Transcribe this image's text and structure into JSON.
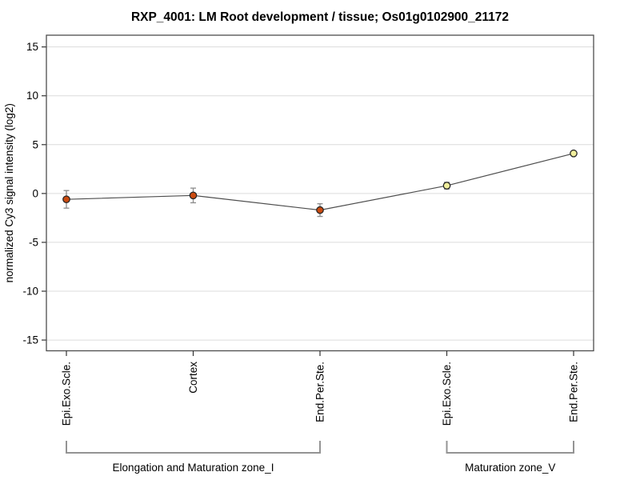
{
  "chart_data": {
    "type": "line",
    "title": "RXP_4001: LM Root development / tissue; Os01g0102900_21172",
    "ylabel": "normalized Cy3 signal intensity (log2)",
    "xlabel": "",
    "ylim": [
      -16.1,
      16.2
    ],
    "yticks": [
      15,
      10,
      5,
      0,
      -5,
      -10,
      -15
    ],
    "grid": true,
    "legend_position": "none",
    "categories": [
      "Epi.Exo.Scle.",
      "Cortex",
      "End.Per.Ste.",
      "Epi.Exo.Scle.",
      "End.Per.Ste."
    ],
    "series": [
      {
        "name": "normalized Cy3 signal intensity (log2)",
        "values": [
          -0.6,
          -0.2,
          -1.7,
          0.8,
          4.1
        ],
        "errors": [
          0.9,
          0.75,
          0.65,
          0.35,
          0.15
        ]
      }
    ],
    "groups": [
      {
        "label": "Elongation and Maturation zone_I",
        "start_index": 0,
        "end_index": 2,
        "marker_color": "#cb4b10"
      },
      {
        "label": "Maturation zone_V",
        "start_index": 3,
        "end_index": 4,
        "marker_color": "#f0ee9c"
      }
    ],
    "colors": {
      "line": "#4d4d4d",
      "error_bar": "#8c8c8c",
      "grid": "#dcdcdc",
      "box_border": "#4d4d4d",
      "marker_border": "#262626",
      "tick": "#333333",
      "bracket": "#949494",
      "text": "#000000",
      "background": "#ffffff"
    }
  }
}
